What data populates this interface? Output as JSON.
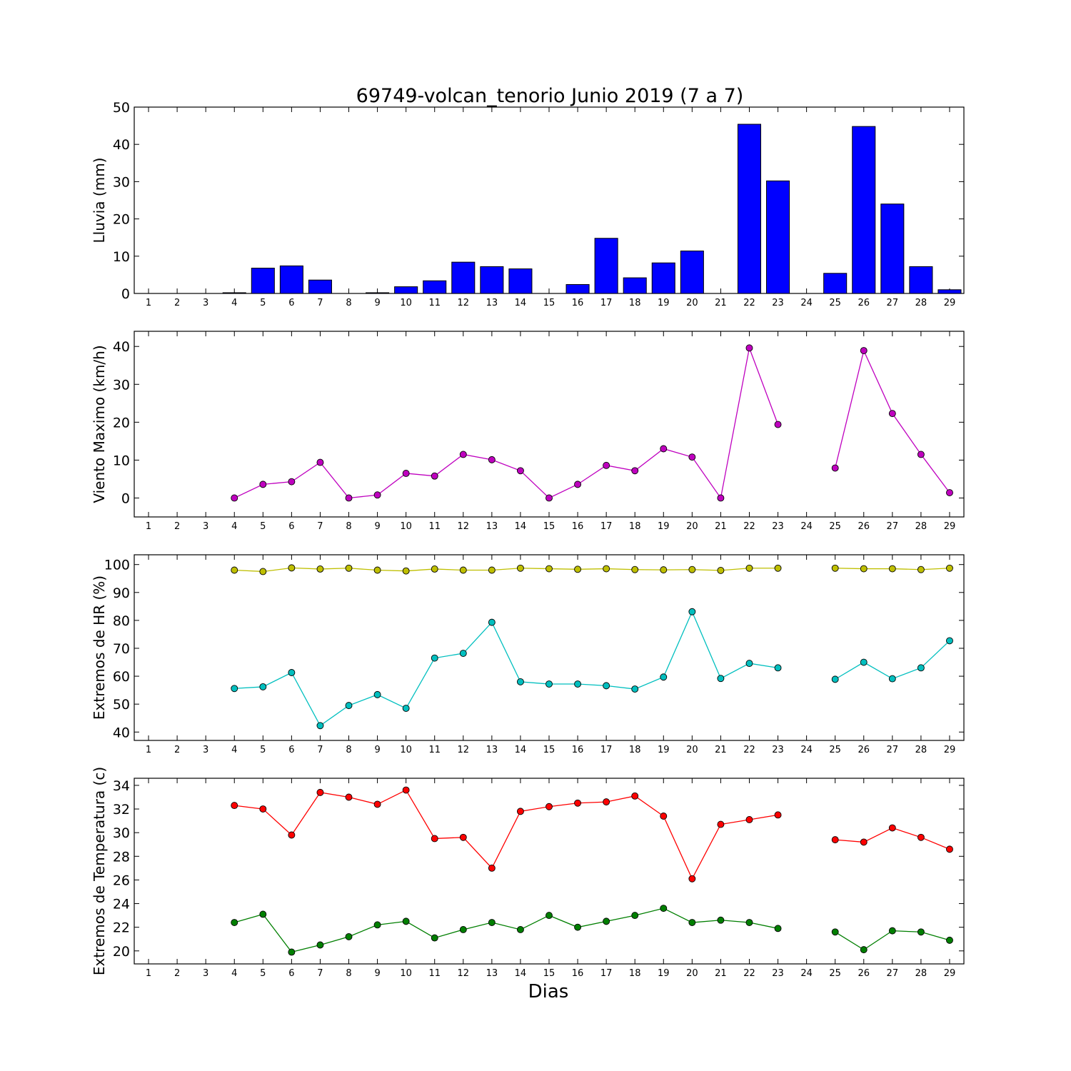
{
  "chart_data": {
    "title": "69749-volcan_tenorio Junio 2019  (7 a 7)",
    "xlabel": "Dias",
    "days": [
      "1",
      "2",
      "3",
      "4",
      "5",
      "6",
      "7",
      "8",
      "9",
      "10",
      "11",
      "12",
      "13",
      "14",
      "15",
      "16",
      "17",
      "18",
      "19",
      "20",
      "21",
      "22",
      "23",
      "24",
      "25",
      "26",
      "27",
      "28",
      "29"
    ],
    "panels": [
      {
        "type": "bar",
        "ylabel": "Lluvia (mm)",
        "ylim": [
          0,
          50
        ],
        "yticks": [
          0,
          10,
          20,
          30,
          40,
          50
        ],
        "color": "#0000ff",
        "values": [
          0,
          0,
          0,
          0.2,
          6.8,
          7.4,
          3.6,
          0,
          0.2,
          1.8,
          3.4,
          8.4,
          7.2,
          6.6,
          0,
          2.4,
          14.8,
          4.2,
          8.2,
          11.4,
          0,
          45.4,
          30.2,
          0,
          5.4,
          44.8,
          24.0,
          7.2,
          1.0
        ]
      },
      {
        "type": "line",
        "ylabel": "Viento Maximo (km/h)",
        "ylim": [
          -5,
          44
        ],
        "yticks": [
          0,
          10,
          20,
          30,
          40
        ],
        "series": [
          {
            "color": "#bf00bf",
            "values": [
              null,
              null,
              null,
              0,
              3.6,
              4.3,
              9.4,
              0,
              0.8,
              6.5,
              5.8,
              11.5,
              10.1,
              7.2,
              0,
              3.6,
              8.6,
              7.2,
              13.0,
              10.8,
              0,
              39.6,
              19.4,
              null,
              7.9,
              38.9,
              22.3,
              11.5,
              1.4
            ]
          }
        ]
      },
      {
        "type": "line",
        "ylabel": "Extremos de HR (%)",
        "ylim": [
          37,
          103.5
        ],
        "yticks": [
          40,
          50,
          60,
          70,
          80,
          90,
          100
        ],
        "series": [
          {
            "color": "#bfbf00",
            "values": [
              null,
              null,
              null,
              98,
              97.5,
              98.8,
              98.4,
              98.7,
              98,
              97.7,
              98.4,
              98,
              98,
              98.7,
              98.5,
              98.3,
              98.5,
              98.2,
              98.1,
              98.2,
              97.9,
              98.7,
              98.7,
              null,
              98.7,
              98.5,
              98.5,
              98.2,
              98.7
            ]
          },
          {
            "color": "#00bfbf",
            "values": [
              null,
              null,
              null,
              55.6,
              56.2,
              61.3,
              42.3,
              49.5,
              53.4,
              48.5,
              66.5,
              68.2,
              79.3,
              58,
              57.2,
              57.2,
              56.6,
              55.4,
              59.7,
              83.1,
              59.2,
              64.6,
              63,
              null,
              58.9,
              65,
              59.1,
              63,
              72.7
            ]
          }
        ]
      },
      {
        "type": "line",
        "ylabel": "Extremos de Temperatura (c)",
        "ylim": [
          18.9,
          34.6
        ],
        "yticks": [
          20,
          22,
          24,
          26,
          28,
          30,
          32,
          34
        ],
        "series": [
          {
            "color": "#ff0000",
            "values": [
              null,
              null,
              null,
              32.3,
              32,
              29.8,
              33.4,
              33,
              32.4,
              33.6,
              29.5,
              29.6,
              27,
              31.8,
              32.2,
              32.5,
              32.6,
              33.1,
              31.4,
              26.1,
              30.7,
              31.1,
              31.5,
              null,
              29.4,
              29.2,
              30.4,
              29.6,
              28.6
            ]
          },
          {
            "color": "#007f00",
            "values": [
              null,
              null,
              null,
              22.4,
              23.1,
              19.9,
              20.5,
              21.2,
              22.2,
              22.5,
              21.1,
              21.8,
              22.4,
              21.8,
              23,
              22,
              22.5,
              23,
              23.6,
              22.4,
              22.6,
              22.4,
              21.9,
              null,
              21.6,
              20.1,
              21.7,
              21.6,
              20.9
            ]
          }
        ]
      }
    ]
  }
}
